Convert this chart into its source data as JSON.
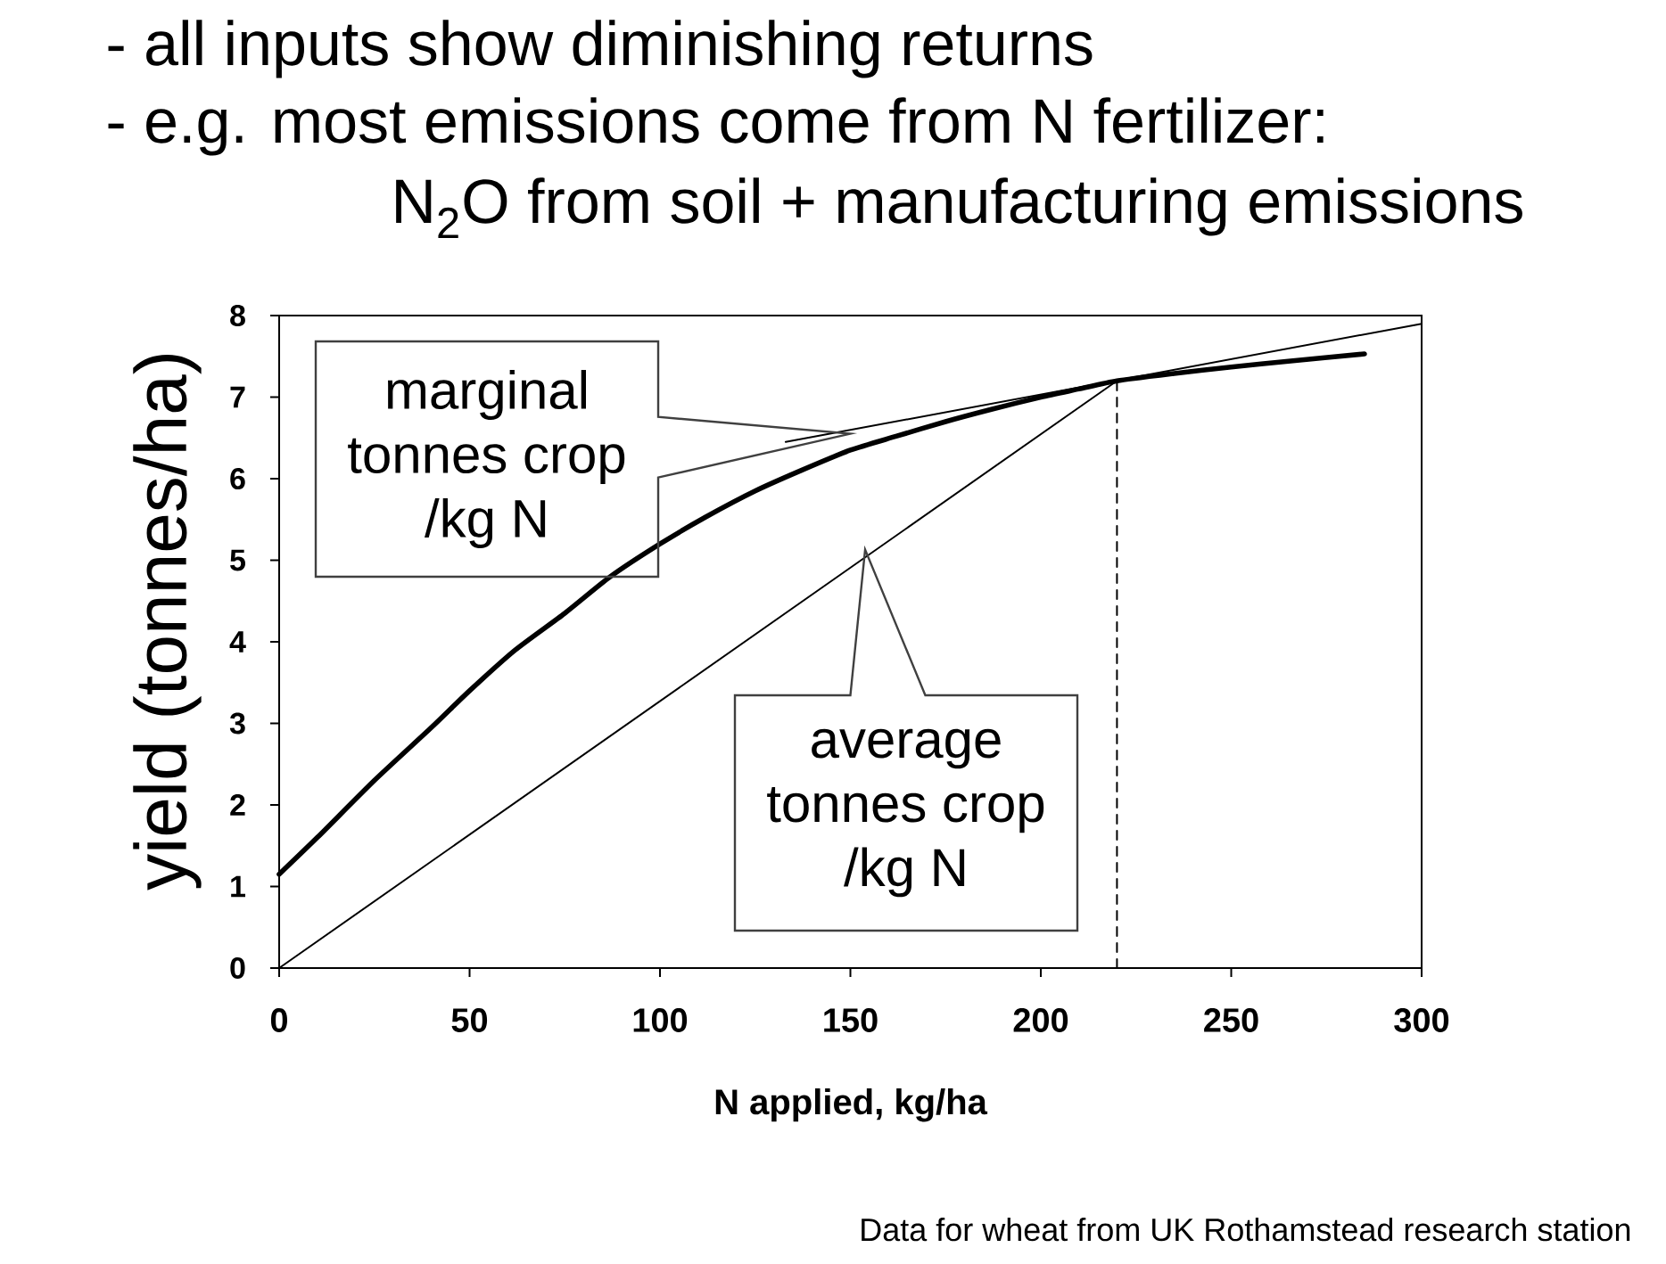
{
  "chart_data": {
    "type": "line",
    "title": "- all inputs show diminishing returns",
    "subtitle": "- e.g. most emissions come from N fertilizer:",
    "xlabel": "N applied, kg/ha",
    "ylabel": "yield (tonnes/ha)",
    "xlim": [
      0,
      300
    ],
    "ylim": [
      0,
      8
    ],
    "xticks": [
      0,
      50,
      100,
      150,
      200,
      250,
      300
    ],
    "yticks": [
      0,
      1,
      2,
      3,
      4,
      5,
      6,
      7,
      8
    ],
    "series": [
      {
        "color": "#000000",
        "x": [
          0,
          10,
          25,
          40,
          50,
          62,
          75,
          87,
          100,
          112,
          125,
          137,
          150,
          162,
          175,
          187,
          200,
          210,
          220,
          235,
          250,
          265,
          285
        ],
        "values": [
          1.15,
          1.6,
          2.3,
          2.95,
          3.4,
          3.9,
          4.35,
          4.8,
          5.2,
          5.53,
          5.85,
          6.1,
          6.35,
          6.52,
          6.7,
          6.85,
          7.0,
          7.1,
          7.2,
          7.29,
          7.37,
          7.44,
          7.53
        ]
      },
      {
        "color": "#000000",
        "x": [
          133,
          300
        ],
        "values": [
          6.45,
          7.9
        ]
      },
      {
        "color": "#000000",
        "x": [
          0,
          220
        ],
        "values": [
          0,
          7.2
        ]
      },
      {
        "color": "#000000",
        "x": [
          220,
          220
        ],
        "values": [
          0,
          7.2
        ],
        "line_style": "dashed"
      }
    ],
    "annotations": [
      "N$_{2}$O from soil + manufacturing emissions",
      "marginal tonnes crop /kg N",
      "average tonnes crop /kg N",
      "Data for wheat from UK Rothamstead research station"
    ]
  }
}
